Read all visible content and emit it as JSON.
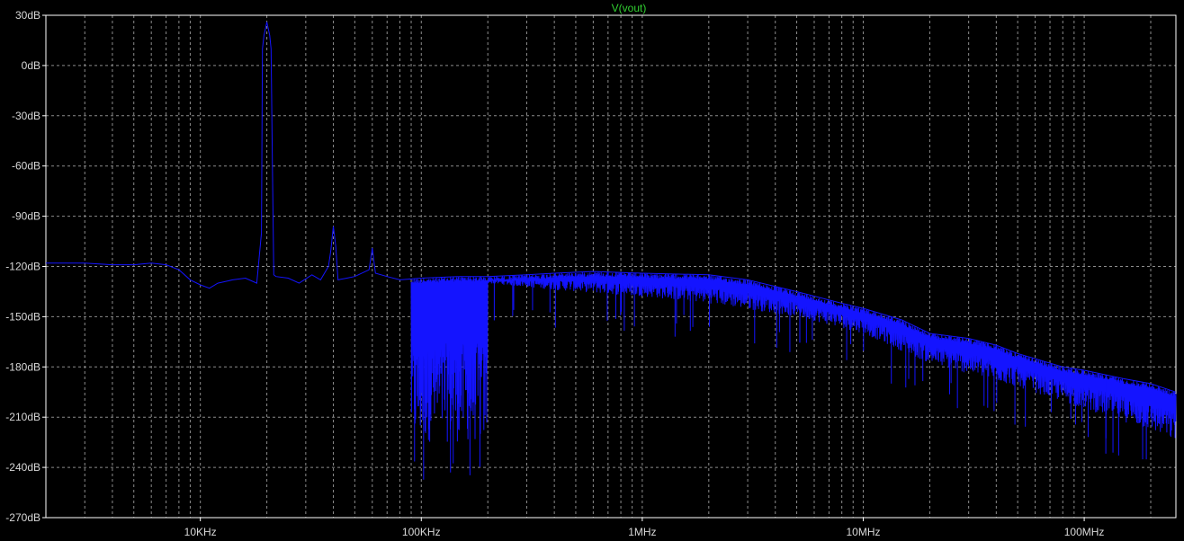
{
  "chart_data": {
    "type": "line",
    "title": "V(vout)",
    "xlabel": "",
    "ylabel": "",
    "xscale": "log",
    "xlim": [
      2000,
      260000000
    ],
    "ylim": [
      -270,
      30
    ],
    "yticks": [
      {
        "value": 30,
        "label": "30dB"
      },
      {
        "value": 0,
        "label": "0dB"
      },
      {
        "value": -30,
        "label": "-30dB"
      },
      {
        "value": -60,
        "label": "-60dB"
      },
      {
        "value": -90,
        "label": "-90dB"
      },
      {
        "value": -120,
        "label": "-120dB"
      },
      {
        "value": -150,
        "label": "-150dB"
      },
      {
        "value": -180,
        "label": "-180dB"
      },
      {
        "value": -210,
        "label": "-210dB"
      },
      {
        "value": -240,
        "label": "-240dB"
      },
      {
        "value": -270,
        "label": "-270dB"
      }
    ],
    "xticks": [
      {
        "value": 10000,
        "label": "10KHz"
      },
      {
        "value": 100000,
        "label": "100KHz"
      },
      {
        "value": 1000000,
        "label": "1MHz"
      },
      {
        "value": 10000000,
        "label": "10MHz"
      },
      {
        "value": 100000000,
        "label": "100MHz"
      }
    ],
    "grid": true,
    "colors": {
      "background": "#000000",
      "axis": "#ffffff",
      "grid": "#8c8c8c",
      "label": "#d8d8d8",
      "title": "#32d232",
      "trace": "#1414ff"
    },
    "series": [
      {
        "name": "V(vout)",
        "color": "#1414ff",
        "points": [
          [
            2000,
            -118
          ],
          [
            3000,
            -118
          ],
          [
            4000,
            -119
          ],
          [
            5000,
            -119
          ],
          [
            6000,
            -118
          ],
          [
            7000,
            -119
          ],
          [
            8000,
            -122
          ],
          [
            9000,
            -128
          ],
          [
            10000,
            -131
          ],
          [
            11000,
            -133
          ],
          [
            12000,
            -130
          ],
          [
            14000,
            -128
          ],
          [
            16000,
            -127
          ],
          [
            18000,
            -130
          ],
          [
            18900,
            -100
          ],
          [
            19100,
            10
          ],
          [
            19400,
            18
          ],
          [
            20000,
            26
          ],
          [
            20600,
            18
          ],
          [
            20900,
            10
          ],
          [
            21200,
            -60
          ],
          [
            21500,
            -125
          ],
          [
            22000,
            -126
          ],
          [
            25000,
            -127
          ],
          [
            28000,
            -130
          ],
          [
            32000,
            -125
          ],
          [
            35000,
            -128
          ],
          [
            38000,
            -120
          ],
          [
            39000,
            -110
          ],
          [
            40000,
            -96
          ],
          [
            41000,
            -108
          ],
          [
            42000,
            -128
          ],
          [
            46000,
            -127
          ],
          [
            50000,
            -126
          ],
          [
            58000,
            -122
          ],
          [
            60000,
            -109
          ],
          [
            62000,
            -124
          ],
          [
            70000,
            -126
          ],
          [
            80000,
            -128
          ],
          [
            100000,
            -127
          ],
          [
            150000,
            -126
          ],
          [
            200000,
            -126
          ],
          [
            300000,
            -125
          ],
          [
            400000,
            -124
          ],
          [
            600000,
            -123
          ],
          [
            1000000,
            -124
          ],
          [
            2000000,
            -125
          ],
          [
            3000000,
            -128
          ],
          [
            5000000,
            -135
          ],
          [
            8000000,
            -142
          ],
          [
            10000000,
            -145
          ],
          [
            15000000,
            -152
          ],
          [
            20000000,
            -160
          ],
          [
            30000000,
            -163
          ],
          [
            40000000,
            -167
          ],
          [
            50000000,
            -172
          ],
          [
            80000000,
            -180
          ],
          [
            100000000,
            -182
          ],
          [
            150000000,
            -187
          ],
          [
            200000000,
            -190
          ],
          [
            260000000,
            -195
          ]
        ],
        "lower_envelope": [
          [
            200000,
            -130
          ],
          [
            400000,
            -134
          ],
          [
            1000000,
            -138
          ],
          [
            2000000,
            -142
          ],
          [
            5000000,
            -150
          ],
          [
            10000000,
            -160
          ],
          [
            20000000,
            -178
          ],
          [
            50000000,
            -192
          ],
          [
            100000000,
            -205
          ],
          [
            200000000,
            -218
          ],
          [
            260000000,
            -225
          ]
        ]
      }
    ]
  }
}
